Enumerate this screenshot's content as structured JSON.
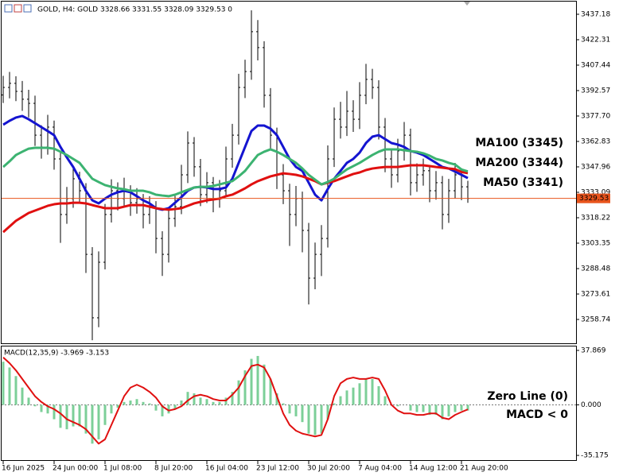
{
  "chart_data": [
    {
      "type": "ohlc",
      "title": "GOLD, H4: GOLD 3328.66 3331.55 3328.09 3329.53 0",
      "color": "#000000",
      "ylim": [
        3244.8,
        3444.6
      ],
      "yticks": [
        3437.18,
        3422.31,
        3407.44,
        3392.57,
        {
          "value": 3377.7,
          "label": "3377.70"
        },
        3362.83,
        3347.96,
        3333.09,
        3318.22,
        3303.35,
        3288.48,
        3273.61,
        3258.74
      ],
      "last_price": 3329.53,
      "last_price_color": "#e8541c",
      "open": [
        3390.0,
        3394.4,
        3396.8,
        3392.1,
        3387.5,
        3385.1,
        3366.5,
        3359.6,
        3371.2,
        3352.6,
        3320.1,
        3329.4,
        3341.0,
        3334.0,
        3296.8,
        3259.7,
        3292.2,
        3320.1,
        3334.0,
        3329.4,
        3334.0,
        3327.0,
        3329.4,
        3320.1,
        3324.7,
        3306.1,
        3296.8,
        3317.8,
        3324.7,
        3343.3,
        3361.9,
        3348.0,
        3331.7,
        3338.7,
        3329.4,
        3334.0,
        3352.6,
        3366.5,
        3394.4,
        3403.7,
        3427.0,
        3417.7,
        3389.8,
        3366.5,
        3343.3,
        3334.0,
        3320.1,
        3329.4,
        3310.8,
        3282.9,
        3296.8,
        3306.1,
        3352.6,
        3375.8,
        3371.2,
        3380.5,
        3375.8,
        3389.8,
        3399.1,
        3394.4,
        3371.2,
        3352.6,
        3343.3,
        3357.3,
        3366.5,
        3338.7,
        3343.3,
        3345.7,
        3334.0,
        3338.7,
        3320.1,
        3334.0,
        3343.3,
        3336.3
      ],
      "high": [
        3401.2,
        3403.5,
        3400.9,
        3398.2,
        3393.0,
        3389.6,
        3372.3,
        3378.4,
        3375.0,
        3356.9,
        3336.2,
        3347.8,
        3345.1,
        3338.4,
        3301.0,
        3298.5,
        3326.3,
        3340.7,
        3338.9,
        3341.6,
        3337.2,
        3335.5,
        3332.1,
        3330.8,
        3327.9,
        3310.3,
        3323.5,
        3331.0,
        3349.2,
        3368.7,
        3365.4,
        3352.6,
        3344.9,
        3342.0,
        3340.3,
        3359.8,
        3373.1,
        3402.4,
        3410.6,
        3439.5,
        3433.8,
        3421.4,
        3394.0,
        3370.9,
        3349.6,
        3338.1,
        3336.8,
        3333.5,
        3315.2,
        3303.7,
        3313.9,
        3360.5,
        3382.7,
        3386.0,
        3392.3,
        3386.9,
        3397.5,
        3408.2,
        3405.3,
        3398.6,
        3376.5,
        3358.1,
        3364.4,
        3374.2,
        3370.3,
        3350.0,
        3352.8,
        3349.1,
        3345.5,
        3342.6,
        3340.9,
        3350.3,
        3347.2,
        3339.8
      ],
      "low": [
        3385.3,
        3388.0,
        3386.4,
        3380.7,
        3376.9,
        3360.2,
        3352.8,
        3355.1,
        3346.3,
        3303.5,
        3314.7,
        3324.0,
        3326.6,
        3285.9,
        3246.6,
        3254.2,
        3288.0,
        3315.4,
        3322.5,
        3324.8,
        3319.3,
        3320.6,
        3312.0,
        3314.6,
        3297.4,
        3284.2,
        3292.0,
        3312.9,
        3320.3,
        3338.5,
        3342.2,
        3325.0,
        3326.8,
        3321.4,
        3324.1,
        3330.2,
        3347.5,
        3361.0,
        3388.2,
        3398.9,
        3410.2,
        3382.6,
        3358.7,
        3335.0,
        3326.2,
        3301.7,
        3313.3,
        3298.0,
        3267.5,
        3276.4,
        3284.1,
        3300.8,
        3347.9,
        3364.5,
        3366.0,
        3368.4,
        3370.1,
        3384.6,
        3387.7,
        3364.0,
        3344.8,
        3335.7,
        3338.9,
        3351.6,
        3331.2,
        3333.4,
        3337.0,
        3327.3,
        3328.8,
        3311.4,
        3315.2,
        3329.6,
        3328.5,
        3326.9
      ],
      "close": [
        3394.4,
        3396.8,
        3392.1,
        3387.5,
        3385.1,
        3366.5,
        3359.6,
        3371.2,
        3352.6,
        3320.1,
        3329.4,
        3341.0,
        3334.0,
        3296.8,
        3259.7,
        3292.2,
        3320.1,
        3334.0,
        3329.4,
        3334.0,
        3327.0,
        3329.4,
        3320.1,
        3324.7,
        3306.1,
        3296.8,
        3317.8,
        3324.7,
        3343.3,
        3361.9,
        3348.0,
        3331.7,
        3338.7,
        3329.4,
        3334.0,
        3352.6,
        3366.5,
        3394.4,
        3403.7,
        3427.0,
        3417.7,
        3389.8,
        3366.5,
        3343.3,
        3334.0,
        3320.1,
        3329.4,
        3310.8,
        3282.9,
        3296.8,
        3306.1,
        3352.6,
        3375.8,
        3371.2,
        3380.5,
        3375.8,
        3389.8,
        3399.1,
        3394.4,
        3371.2,
        3352.6,
        3343.3,
        3357.3,
        3366.5,
        3338.7,
        3343.3,
        3345.7,
        3334.0,
        3338.7,
        3320.1,
        3334.0,
        3343.3,
        3336.3,
        3329.53
      ],
      "lines": [
        {
          "name": "MA100 (3345)",
          "color": "#3cb371",
          "text_color": "#008000",
          "values": [
            3347.9,
            3351.2,
            3354.9,
            3356.8,
            3358.6,
            3359.1,
            3359.1,
            3359.1,
            3358.6,
            3356.8,
            3354.9,
            3352.6,
            3350.3,
            3345.6,
            3341.0,
            3339.1,
            3337.3,
            3336.3,
            3335.4,
            3334.9,
            3334.0,
            3334.0,
            3334.0,
            3333.1,
            3331.7,
            3331.2,
            3330.8,
            3331.7,
            3333.1,
            3334.5,
            3335.9,
            3336.3,
            3336.3,
            3336.8,
            3337.7,
            3338.7,
            3339.6,
            3342.4,
            3345.6,
            3350.3,
            3354.9,
            3356.8,
            3358.2,
            3356.8,
            3354.9,
            3352.6,
            3350.3,
            3347.0,
            3343.3,
            3340.5,
            3337.7,
            3339.1,
            3341.0,
            3343.8,
            3346.5,
            3348.4,
            3350.3,
            3352.6,
            3354.9,
            3356.8,
            3358.2,
            3358.2,
            3358.2,
            3357.7,
            3357.2,
            3356.8,
            3355.9,
            3354.5,
            3352.6,
            3351.7,
            3350.3,
            3349.3,
            3346.4,
            3345.3
          ]
        },
        {
          "name": "MA200 (3344)",
          "color": "#e01010",
          "text_color": "#e01010",
          "values": [
            3309.8,
            3313.1,
            3316.4,
            3318.7,
            3321.0,
            3322.4,
            3323.8,
            3325.2,
            3326.1,
            3326.6,
            3326.6,
            3327.0,
            3327.0,
            3326.6,
            3325.6,
            3324.7,
            3323.8,
            3323.8,
            3323.8,
            3324.7,
            3325.6,
            3325.6,
            3325.6,
            3324.7,
            3323.8,
            3323.3,
            3322.9,
            3323.3,
            3323.8,
            3325.2,
            3326.6,
            3327.5,
            3328.4,
            3328.9,
            3329.4,
            3330.8,
            3331.7,
            3333.5,
            3335.4,
            3337.7,
            3339.6,
            3341.0,
            3342.4,
            3343.3,
            3344.2,
            3343.8,
            3343.3,
            3342.4,
            3341.0,
            3339.6,
            3337.7,
            3338.7,
            3339.6,
            3341.0,
            3342.4,
            3343.8,
            3344.7,
            3346.1,
            3347.0,
            3347.5,
            3347.9,
            3347.9,
            3347.9,
            3348.4,
            3348.9,
            3348.9,
            3348.9,
            3348.4,
            3347.9,
            3347.5,
            3347.0,
            3346.6,
            3345.0,
            3344.3
          ]
        },
        {
          "name": "MA50 (3341)",
          "color": "#1414d0",
          "text_color": "#00149a",
          "values": [
            3372.6,
            3374.9,
            3376.8,
            3377.7,
            3375.8,
            3373.5,
            3371.2,
            3368.9,
            3366.5,
            3359.6,
            3353.5,
            3347.9,
            3341.0,
            3334.0,
            3328.4,
            3326.6,
            3329.4,
            3331.7,
            3333.1,
            3334.0,
            3333.1,
            3330.8,
            3328.4,
            3326.6,
            3323.8,
            3322.9,
            3323.8,
            3327.0,
            3330.3,
            3334.0,
            3335.9,
            3336.3,
            3335.9,
            3335.0,
            3335.0,
            3335.9,
            3341.0,
            3350.3,
            3359.6,
            3368.9,
            3372.1,
            3372.1,
            3370.3,
            3366.5,
            3359.6,
            3352.6,
            3347.9,
            3345.6,
            3338.7,
            3331.7,
            3328.4,
            3335.0,
            3341.0,
            3345.6,
            3350.3,
            3352.6,
            3356.3,
            3361.9,
            3365.6,
            3366.5,
            3364.2,
            3361.9,
            3361.0,
            3359.6,
            3357.2,
            3356.3,
            3354.9,
            3352.6,
            3350.3,
            3347.9,
            3347.0,
            3345.2,
            3343.3,
            3341.4
          ]
        }
      ]
    },
    {
      "type": "macd",
      "title": "MACD(12,35,9) -3.969 -3.153",
      "ylim": [
        -39.0,
        40.6
      ],
      "yticks": [
        37.869,
        {
          "value": 0,
          "label": "0.000"
        },
        -35.175
      ],
      "categories": [
        "16 Jun 2025",
        null,
        null,
        null,
        null,
        null,
        null,
        null,
        "24 Jun 00:00",
        null,
        null,
        null,
        null,
        null,
        null,
        null,
        "1 Jul 08:00",
        null,
        null,
        null,
        null,
        null,
        null,
        null,
        "8 Jul 20:00",
        null,
        null,
        null,
        null,
        null,
        null,
        null,
        "16 Jul 04:00",
        null,
        null,
        null,
        null,
        null,
        null,
        null,
        "23 Jul 12:00",
        null,
        null,
        null,
        null,
        null,
        null,
        null,
        "30 Jul 20:00",
        null,
        null,
        null,
        null,
        null,
        null,
        null,
        "7 Aug 04:00",
        null,
        null,
        null,
        null,
        null,
        null,
        null,
        "14 Aug 12:00",
        null,
        null,
        null,
        null,
        null,
        null,
        null,
        "21 Aug 20:00",
        null
      ],
      "histogram": {
        "color": "#7ccf98",
        "values": [
          30,
          26,
          20,
          12,
          5,
          -1,
          -5,
          -6,
          -10,
          -16,
          -17,
          -15,
          -15,
          -20,
          -27,
          -24,
          -14,
          -6,
          -2,
          2,
          3,
          4,
          2,
          1,
          -4,
          -8,
          -6,
          -3,
          3,
          9,
          8,
          5,
          4,
          2,
          2,
          5,
          9,
          17,
          24,
          32,
          34,
          28,
          18,
          8,
          1,
          -6,
          -8,
          -12,
          -20,
          -21,
          -20,
          -10,
          1,
          6,
          10,
          12,
          15,
          18,
          18,
          13,
          6,
          0,
          -1,
          0,
          -4,
          -5,
          -5,
          -7,
          -7,
          -10,
          -8,
          -5,
          -4,
          -3.969
        ]
      },
      "signal": {
        "color": "#e01010",
        "values": [
          33,
          29,
          24,
          18,
          12,
          6,
          2,
          -1,
          -3,
          -6,
          -10,
          -12,
          -14,
          -17,
          -22,
          -27,
          -24,
          -14,
          -4,
          6,
          12,
          14,
          12,
          9,
          5,
          -1,
          -4,
          -3,
          -1,
          3,
          6,
          7,
          6,
          4,
          3,
          3,
          7,
          12,
          20,
          27,
          28,
          26,
          18,
          6,
          -6,
          -14,
          -18,
          -20,
          -21,
          -22,
          -21,
          -10,
          6,
          15,
          18,
          19,
          18,
          18,
          19,
          18,
          10,
          0,
          -4,
          -6,
          -6,
          -7,
          -7,
          -6,
          -6,
          -9,
          -10,
          -7,
          -5,
          -3.153
        ]
      },
      "annotations": [
        {
          "text": "Zero Line (0)",
          "color": "#000000"
        },
        {
          "text": "MACD < 0",
          "color": "#e01010"
        }
      ]
    }
  ]
}
